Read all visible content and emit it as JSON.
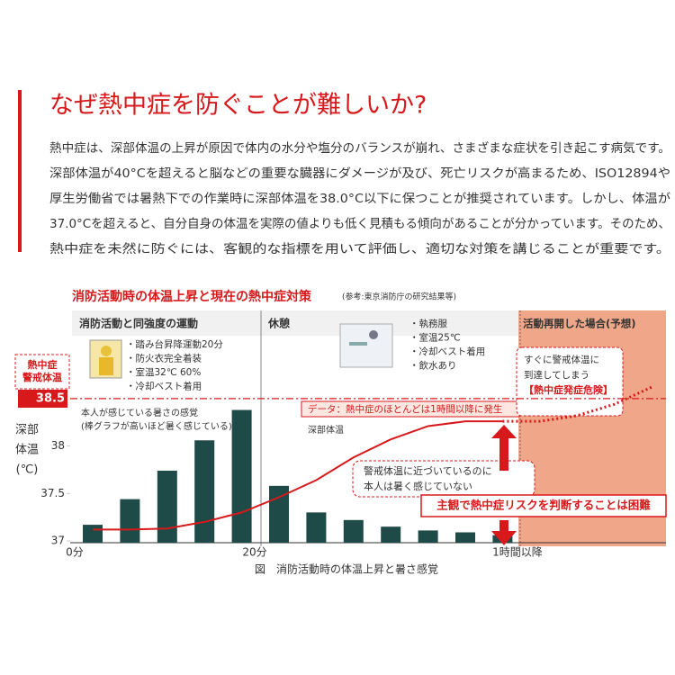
{
  "header": {
    "title": "なぜ熱中症を防ぐことが難しいか?"
  },
  "body": {
    "lines": [
      "熱中症は、深部体温の上昇が原因で体内の水分や塩分のバランスが崩れ、さまざまな症状を引き起こす病気です。",
      "深部体温が40°Cを超えると脳などの重要な臓器にダメージが及び、死亡リスクが高まるため、ISO12894や",
      "厚生労働省では暑熱下での作業時に深部体温を38.0°C以下に保つことが推奨されています。しかし、体温が",
      "37.0°Cを超えると、自分自身の体温を実際の値よりも低く見積もる傾向があることが分かっています。そのため、",
      "熱中症を未然に防ぐには、客観的な指標を用いて評価し、適切な対策を講じることが重要です。"
    ]
  },
  "chart_data": {
    "type": "combo",
    "title": "消防活動時の体温上昇と現在の熱中症対策",
    "subtitle": "(参考:東京消防庁の研究結果等)",
    "caption": "図　消防活動時の体温上昇と暑さ感覚",
    "ylabel": [
      "深部",
      "体温",
      "(℃)"
    ],
    "threshold_label": [
      "熱中症",
      "警戒体温"
    ],
    "threshold": 38.5,
    "ylim": [
      37,
      39.4
    ],
    "yticks": [
      37,
      37.5,
      38,
      38.5
    ],
    "x_labels": [
      "0分",
      "20分",
      "1時間以降"
    ],
    "categories": [
      null,
      null,
      null,
      null,
      null,
      null,
      null,
      null,
      null,
      null,
      null,
      null,
      null,
      null,
      null,
      null
    ],
    "series": [
      {
        "color": "#1e4a48",
        "values": [
          37.17,
          37.44,
          37.74,
          38.06,
          38.38,
          37.58,
          37.3,
          37.22,
          37.15,
          37.11,
          37.09,
          37.06,
          null,
          null,
          null,
          null
        ]
      },
      {
        "color": "#d7191c",
        "values": [
          37.12,
          37.12,
          37.13,
          37.2,
          37.3,
          37.46,
          37.64,
          37.88,
          38.07,
          38.21,
          38.26,
          38.26,
          null,
          null,
          null,
          null
        ]
      },
      {
        "color": "#d7191c",
        "values": [
          null,
          null,
          null,
          null,
          null,
          null,
          null,
          null,
          null,
          null,
          null,
          38.26,
          38.26,
          38.32,
          38.44,
          38.62
        ]
      }
    ],
    "sections": [
      {
        "title": "消防活動と同強度の運動",
        "items": [
          "・踏み台昇降運動20分",
          "・防火衣完全着装",
          "・室温32℃ 60%",
          "・冷却ベスト着用"
        ]
      },
      {
        "title": "休憩",
        "items": [
          "・執務服",
          "・室温25℃",
          "・冷却ベスト着用",
          "・飲水あり"
        ]
      },
      {
        "title": "活動再開した場合(予想)"
      }
    ],
    "annotations": {
      "bars": [
        "本人が感じている暑さの感覚",
        "(棒グラフが高いほど暑く感じている)"
      ],
      "line": "深部体温",
      "data": "データ：熱中症のほとんどは1時間以降に発生",
      "forecast": [
        "すぐに警戒体温に",
        "到達してしまう",
        "【熱中症発症危険】"
      ],
      "gap": [
        "警戒体温に近づいているのに",
        "本人は暑く感じていない"
      ],
      "conclusion": "主観で熱中症リスクを判断することは困難"
    }
  }
}
